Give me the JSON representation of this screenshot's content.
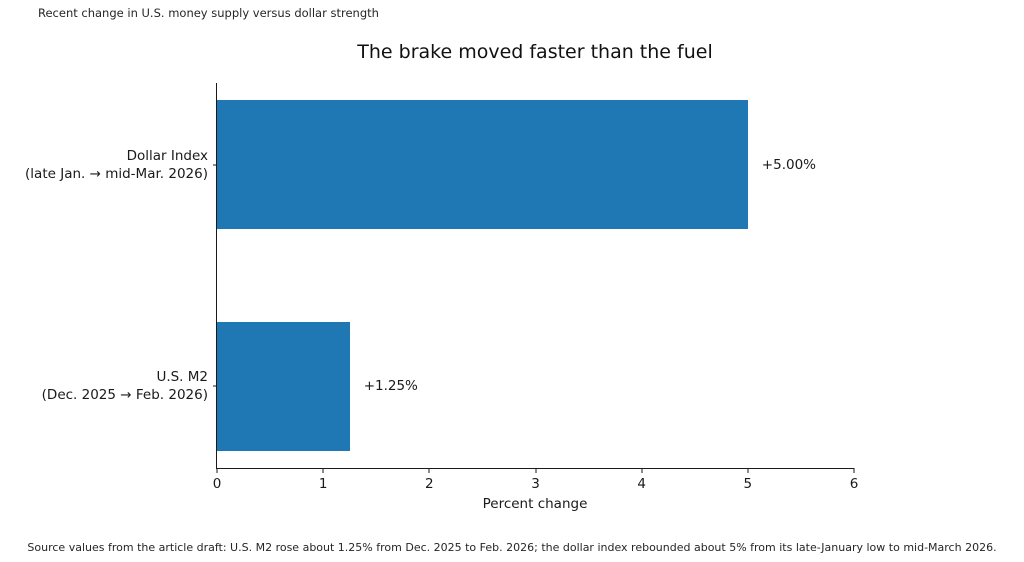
{
  "chart_data": {
    "type": "bar",
    "orientation": "horizontal",
    "suptitle": "Recent change in U.S. money supply versus dollar strength",
    "title": "The brake moved faster than the fuel",
    "xlabel": "Percent change",
    "xlim": [
      0,
      6
    ],
    "xticks": [
      0,
      1,
      2,
      3,
      4,
      5,
      6
    ],
    "grid": false,
    "legend": false,
    "bar_color": "#1f77b4",
    "categories": [
      {
        "line1": "Dollar Index",
        "line2": "(late Jan. → mid-Mar. 2026)"
      },
      {
        "line1": "U.S. M2",
        "line2": "(Dec. 2025 → Feb. 2026)"
      }
    ],
    "values": [
      5.0,
      1.25
    ],
    "value_labels": [
      "+5.00%",
      "+1.25%"
    ],
    "source": "Source values from the article draft: U.S. M2 rose about 1.25% from Dec. 2025 to Feb. 2026; the dollar index rebounded about 5% from its late-January low to mid-March 2026."
  }
}
